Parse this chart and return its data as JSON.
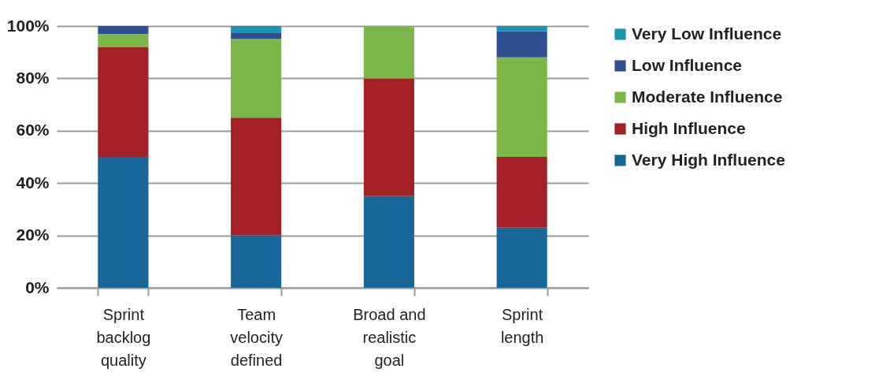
{
  "chart_data": {
    "type": "bar",
    "stacked": true,
    "categories": [
      "Sprint backlog quality",
      "Team velocity defined",
      "Broad and realistic goal",
      "Sprint length"
    ],
    "series": [
      {
        "name": "Very High Influence",
        "color": "#17679a",
        "values": [
          50,
          20,
          35,
          23
        ]
      },
      {
        "name": "High Influence",
        "color": "#a32126",
        "values": [
          42,
          45,
          45,
          27
        ]
      },
      {
        "name": "Moderate Influence",
        "color": "#7ab648",
        "values": [
          5,
          30,
          20,
          38
        ]
      },
      {
        "name": "Low Influence",
        "color": "#2e4f8f",
        "values": [
          3,
          2.5,
          0,
          10
        ]
      },
      {
        "name": "Very Low Influence",
        "color": "#1a94b0",
        "values": [
          0,
          2.5,
          0,
          2
        ]
      }
    ],
    "ylim": [
      0,
      100
    ],
    "yticks": [
      {
        "value": 0,
        "label": "0%"
      },
      {
        "value": 20,
        "label": "20%"
      },
      {
        "value": 40,
        "label": "40%"
      },
      {
        "value": 60,
        "label": "60%"
      },
      {
        "value": 80,
        "label": "80%"
      },
      {
        "value": 100,
        "label": "100%"
      }
    ],
    "grid": "y",
    "legend": "right"
  }
}
